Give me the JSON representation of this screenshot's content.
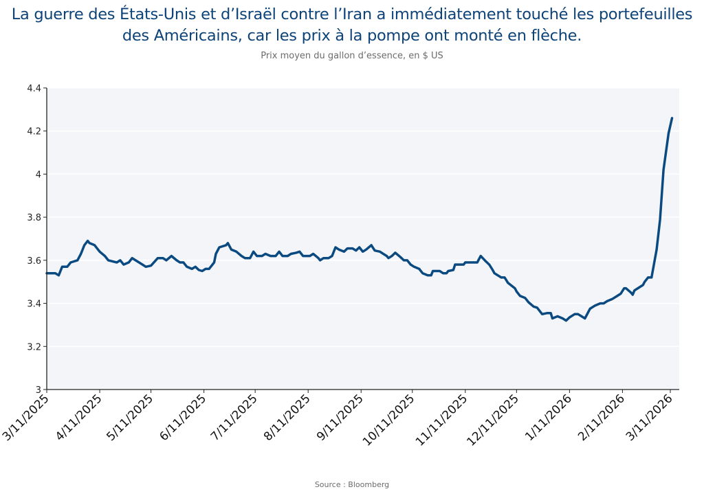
{
  "chart_data": {
    "type": "line",
    "title": "La guerre des États-Unis et d’Israël contre l’Iran a immédiatement touché les portefeuilles des Américains, car les prix à la pompe ont monté en flèche.",
    "subtitle": "Prix moyen du gallon d’essence, en $ US",
    "source": "Source : Bloomberg",
    "xlabel": "",
    "ylabel": "",
    "ylim": [
      3,
      4.4
    ],
    "xlim": [
      "2025-03-11",
      "2026-03-11"
    ],
    "yticks": [
      "3",
      "3.2",
      "3.4",
      "3.6",
      "3.8",
      "4",
      "4.2",
      "4.4"
    ],
    "xticks": [
      "3/11/2025",
      "4/11/2025",
      "5/11/2025",
      "6/11/2025",
      "7/11/2025",
      "8/11/2025",
      "9/11/2025",
      "10/11/2025",
      "11/11/2025",
      "12/11/2025",
      "1/11/2026",
      "2/11/2026",
      "3/11/2026"
    ],
    "grid": "horizontal",
    "line_color": "#0b4a80",
    "plot_background": "#f3f5f8",
    "points": [
      [
        "2025-03-11",
        3.54
      ],
      [
        "2025-03-16",
        3.54
      ],
      [
        "2025-03-18",
        3.53
      ],
      [
        "2025-03-20",
        3.57
      ],
      [
        "2025-03-23",
        3.57
      ],
      [
        "2025-03-25",
        3.59
      ],
      [
        "2025-03-29",
        3.6
      ],
      [
        "2025-03-31",
        3.63
      ],
      [
        "2025-04-02",
        3.67
      ],
      [
        "2025-04-04",
        3.69
      ],
      [
        "2025-04-05",
        3.68
      ],
      [
        "2025-04-08",
        3.67
      ],
      [
        "2025-04-11",
        3.64
      ],
      [
        "2025-04-14",
        3.62
      ],
      [
        "2025-04-16",
        3.6
      ],
      [
        "2025-04-21",
        3.59
      ],
      [
        "2025-04-23",
        3.6
      ],
      [
        "2025-04-25",
        3.58
      ],
      [
        "2025-04-28",
        3.59
      ],
      [
        "2025-04-30",
        3.61
      ],
      [
        "2025-05-02",
        3.6
      ],
      [
        "2025-05-06",
        3.58
      ],
      [
        "2025-05-08",
        3.57
      ],
      [
        "2025-05-11",
        3.575
      ],
      [
        "2025-05-15",
        3.61
      ],
      [
        "2025-05-18",
        3.61
      ],
      [
        "2025-05-20",
        3.6
      ],
      [
        "2025-05-23",
        3.62
      ],
      [
        "2025-05-26",
        3.6
      ],
      [
        "2025-05-28",
        3.59
      ],
      [
        "2025-05-30",
        3.59
      ],
      [
        "2025-06-01",
        3.57
      ],
      [
        "2025-06-04",
        3.56
      ],
      [
        "2025-06-06",
        3.57
      ],
      [
        "2025-06-08",
        3.555
      ],
      [
        "2025-06-10",
        3.55
      ],
      [
        "2025-06-12",
        3.56
      ],
      [
        "2025-06-14",
        3.56
      ],
      [
        "2025-06-17",
        3.59
      ],
      [
        "2025-06-18",
        3.63
      ],
      [
        "2025-06-20",
        3.66
      ],
      [
        "2025-06-24",
        3.67
      ],
      [
        "2025-06-25",
        3.68
      ],
      [
        "2025-06-27",
        3.65
      ],
      [
        "2025-06-30",
        3.64
      ],
      [
        "2025-07-03",
        3.62
      ],
      [
        "2025-07-05",
        3.61
      ],
      [
        "2025-07-08",
        3.61
      ],
      [
        "2025-07-10",
        3.64
      ],
      [
        "2025-07-12",
        3.62
      ],
      [
        "2025-07-15",
        3.62
      ],
      [
        "2025-07-17",
        3.63
      ],
      [
        "2025-07-20",
        3.62
      ],
      [
        "2025-07-23",
        3.62
      ],
      [
        "2025-07-25",
        3.64
      ],
      [
        "2025-07-27",
        3.62
      ],
      [
        "2025-07-30",
        3.62
      ],
      [
        "2025-08-01",
        3.63
      ],
      [
        "2025-08-04",
        3.635
      ],
      [
        "2025-08-06",
        3.64
      ],
      [
        "2025-08-08",
        3.62
      ],
      [
        "2025-08-12",
        3.62
      ],
      [
        "2025-08-14",
        3.63
      ],
      [
        "2025-08-17",
        3.61
      ],
      [
        "2025-08-18",
        3.6
      ],
      [
        "2025-08-20",
        3.61
      ],
      [
        "2025-08-23",
        3.61
      ],
      [
        "2025-08-25",
        3.62
      ],
      [
        "2025-08-27",
        3.66
      ],
      [
        "2025-08-29",
        3.65
      ],
      [
        "2025-09-01",
        3.64
      ],
      [
        "2025-09-03",
        3.655
      ],
      [
        "2025-09-06",
        3.655
      ],
      [
        "2025-09-08",
        3.645
      ],
      [
        "2025-09-10",
        3.66
      ],
      [
        "2025-09-12",
        3.64
      ],
      [
        "2025-09-14",
        3.65
      ],
      [
        "2025-09-17",
        3.67
      ],
      [
        "2025-09-19",
        3.645
      ],
      [
        "2025-09-22",
        3.64
      ],
      [
        "2025-09-24",
        3.63
      ],
      [
        "2025-09-26",
        3.62
      ],
      [
        "2025-09-27",
        3.61
      ],
      [
        "2025-09-29",
        3.62
      ],
      [
        "2025-10-01",
        3.635
      ],
      [
        "2025-10-04",
        3.615
      ],
      [
        "2025-10-06",
        3.6
      ],
      [
        "2025-10-08",
        3.6
      ],
      [
        "2025-10-10",
        3.58
      ],
      [
        "2025-10-12",
        3.57
      ],
      [
        "2025-10-15",
        3.56
      ],
      [
        "2025-10-17",
        3.54
      ],
      [
        "2025-10-20",
        3.53
      ],
      [
        "2025-10-22",
        3.53
      ],
      [
        "2025-10-23",
        3.55
      ],
      [
        "2025-10-25",
        3.55
      ],
      [
        "2025-10-27",
        3.55
      ],
      [
        "2025-10-29",
        3.54
      ],
      [
        "2025-10-31",
        3.54
      ],
      [
        "2025-11-01",
        3.55
      ],
      [
        "2025-11-04",
        3.555
      ],
      [
        "2025-11-05",
        3.58
      ],
      [
        "2025-11-10",
        3.58
      ],
      [
        "2025-11-11",
        3.59
      ],
      [
        "2025-11-18",
        3.59
      ],
      [
        "2025-11-20",
        3.62
      ],
      [
        "2025-11-23",
        3.595
      ],
      [
        "2025-11-25",
        3.58
      ],
      [
        "2025-11-27",
        3.555
      ],
      [
        "2025-11-28",
        3.54
      ],
      [
        "2025-12-02",
        3.52
      ],
      [
        "2025-12-04",
        3.52
      ],
      [
        "2025-12-06",
        3.495
      ],
      [
        "2025-12-10",
        3.47
      ],
      [
        "2025-12-11",
        3.455
      ],
      [
        "2025-12-13",
        3.435
      ],
      [
        "2025-12-16",
        3.425
      ],
      [
        "2025-12-18",
        3.405
      ],
      [
        "2025-12-21",
        3.385
      ],
      [
        "2025-12-23",
        3.38
      ],
      [
        "2025-12-26",
        3.35
      ],
      [
        "2025-12-29",
        3.355
      ],
      [
        "2025-12-31",
        3.355
      ],
      [
        "2026-01-01",
        3.33
      ],
      [
        "2026-01-04",
        3.34
      ],
      [
        "2026-01-07",
        3.33
      ],
      [
        "2026-01-09",
        3.32
      ],
      [
        "2026-01-11",
        3.335
      ],
      [
        "2026-01-14",
        3.35
      ],
      [
        "2026-01-16",
        3.35
      ],
      [
        "2026-01-18",
        3.34
      ],
      [
        "2026-01-20",
        3.33
      ],
      [
        "2026-01-23",
        3.375
      ],
      [
        "2026-01-26",
        3.39
      ],
      [
        "2026-01-29",
        3.4
      ],
      [
        "2026-01-31",
        3.4
      ],
      [
        "2026-02-02",
        3.41
      ],
      [
        "2026-02-05",
        3.42
      ],
      [
        "2026-02-08",
        3.435
      ],
      [
        "2026-02-10",
        3.445
      ],
      [
        "2026-02-12",
        3.47
      ],
      [
        "2026-02-13",
        3.47
      ],
      [
        "2026-02-16",
        3.45
      ],
      [
        "2026-02-17",
        3.44
      ],
      [
        "2026-02-18",
        3.46
      ],
      [
        "2026-02-20",
        3.47
      ],
      [
        "2026-02-23",
        3.485
      ],
      [
        "2026-02-24",
        3.5
      ],
      [
        "2026-02-26",
        3.52
      ],
      [
        "2026-02-28",
        3.52
      ],
      [
        "2026-03-03",
        3.65
      ],
      [
        "2026-03-05",
        3.79
      ],
      [
        "2026-03-07",
        4.02
      ],
      [
        "2026-03-10",
        4.19
      ],
      [
        "2026-03-12",
        4.26
      ]
    ]
  }
}
